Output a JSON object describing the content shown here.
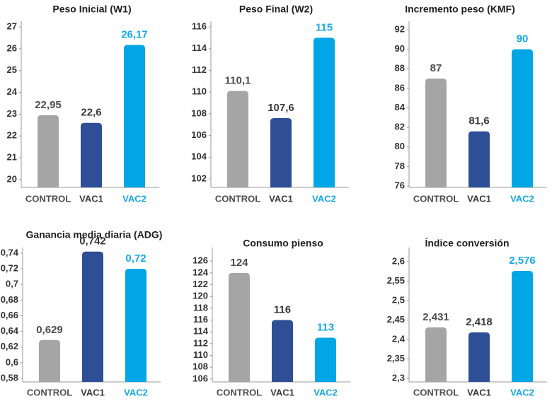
{
  "chart_data": [
    {
      "type": "bar",
      "title": "Peso Inicial (W1)",
      "categories": [
        "CONTROL",
        "VAC1",
        "VAC2"
      ],
      "values": [
        22.95,
        22.6,
        26.17
      ],
      "value_labels": [
        "22,95",
        "22,6",
        "26,17"
      ],
      "colors": [
        "#a5a5a5",
        "#2e4f96",
        "#00a6e6"
      ],
      "label_colors": [
        "#4d4d4d",
        "#3a3a3a",
        "#14a8e6"
      ],
      "ylim": [
        19.64,
        27.26
      ],
      "yticks": [
        20,
        21,
        22,
        23,
        24,
        25,
        26,
        27
      ]
    },
    {
      "type": "bar",
      "title": "Peso Final (W2)",
      "categories": [
        "CONTROL",
        "VAC1",
        "VAC2"
      ],
      "values": [
        110.1,
        107.6,
        115
      ],
      "value_labels": [
        "110,1",
        "107,6",
        "115"
      ],
      "colors": [
        "#a5a5a5",
        "#2e4f96",
        "#00a6e6"
      ],
      "label_colors": [
        "#4d4d4d",
        "#3a3a3a",
        "#14a8e6"
      ],
      "ylim": [
        101.22,
        116.52
      ],
      "yticks": [
        102,
        104,
        106,
        108,
        110,
        112,
        114,
        116
      ]
    },
    {
      "type": "bar",
      "title": "Incremento peso (KMF)",
      "categories": [
        "CONTROL",
        "VAC1",
        "VAC2"
      ],
      "values": [
        87,
        81.6,
        90
      ],
      "value_labels": [
        "87",
        "81,6",
        "90"
      ],
      "colors": [
        "#a5a5a5",
        "#2e4f96",
        "#00a6e6"
      ],
      "label_colors": [
        "#4d4d4d",
        "#3a3a3a",
        "#14a8e6"
      ],
      "ylim": [
        75.86,
        92.87
      ],
      "yticks": [
        76,
        78,
        80,
        82,
        84,
        86,
        88,
        90,
        92
      ]
    },
    {
      "type": "bar",
      "title": "Ganancia media diaria (ADG)",
      "categories": [
        "CONTROL",
        "VAC1",
        "VAC2"
      ],
      "values": [
        0.629,
        0.742,
        0.72
      ],
      "value_labels": [
        "0,629",
        "0,742",
        "0,72"
      ],
      "colors": [
        "#a5a5a5",
        "#2e4f96",
        "#00a6e6"
      ],
      "label_colors": [
        "#4d4d4d",
        "#3a3a3a",
        "#14a8e6"
      ],
      "ylim": [
        0.5755,
        0.7472
      ],
      "yticks": [
        {
          "value": 0.58,
          "label": "0,58"
        },
        {
          "value": 0.6,
          "label": "0,6"
        },
        {
          "value": 0.62,
          "label": "0,62"
        },
        {
          "value": 0.64,
          "label": "0,64"
        },
        {
          "value": 0.66,
          "label": "0,66"
        },
        {
          "value": 0.68,
          "label": "0,68"
        },
        {
          "value": 0.7,
          "label": "0,7"
        },
        {
          "value": 0.72,
          "label": "0,72"
        },
        {
          "value": 0.74,
          "label": "0,74"
        }
      ]
    },
    {
      "type": "bar",
      "title": "Consumo pienso",
      "categories": [
        "CONTROL",
        "VAC1",
        "VAC2"
      ],
      "values": [
        124,
        116,
        113
      ],
      "colors": [
        "#a5a5a5",
        "#2e4f96",
        "#00a6e6"
      ],
      "label_colors": [
        "#4d4d4d",
        "#3a3a3a",
        "#14a8e6"
      ],
      "ylim": [
        105.5,
        128.3
      ],
      "yticks": [
        106,
        108,
        110,
        112,
        114,
        116,
        118,
        120,
        122,
        124,
        126
      ]
    },
    {
      "type": "bar",
      "title": "Índice conversión",
      "categories": [
        "CONTROL",
        "VAC1",
        "VAC2"
      ],
      "values": [
        2.431,
        2.418,
        2.576
      ],
      "value_labels": [
        "2,431",
        "2,418",
        "2,576"
      ],
      "colors": [
        "#a5a5a5",
        "#2e4f96",
        "#00a6e6"
      ],
      "label_colors": [
        "#4d4d4d",
        "#3a3a3a",
        "#14a8e6"
      ],
      "ylim": [
        2.291,
        2.636
      ],
      "yticks": [
        {
          "value": 2.3,
          "label": "2,3"
        },
        {
          "value": 2.35,
          "label": "2,35"
        },
        {
          "value": 2.4,
          "label": "2,4"
        },
        {
          "value": 2.45,
          "label": "2,45"
        },
        {
          "value": 2.5,
          "label": "2,5"
        },
        {
          "value": 2.55,
          "label": "2,55"
        },
        {
          "value": 2.6,
          "label": "2,6"
        }
      ]
    }
  ]
}
